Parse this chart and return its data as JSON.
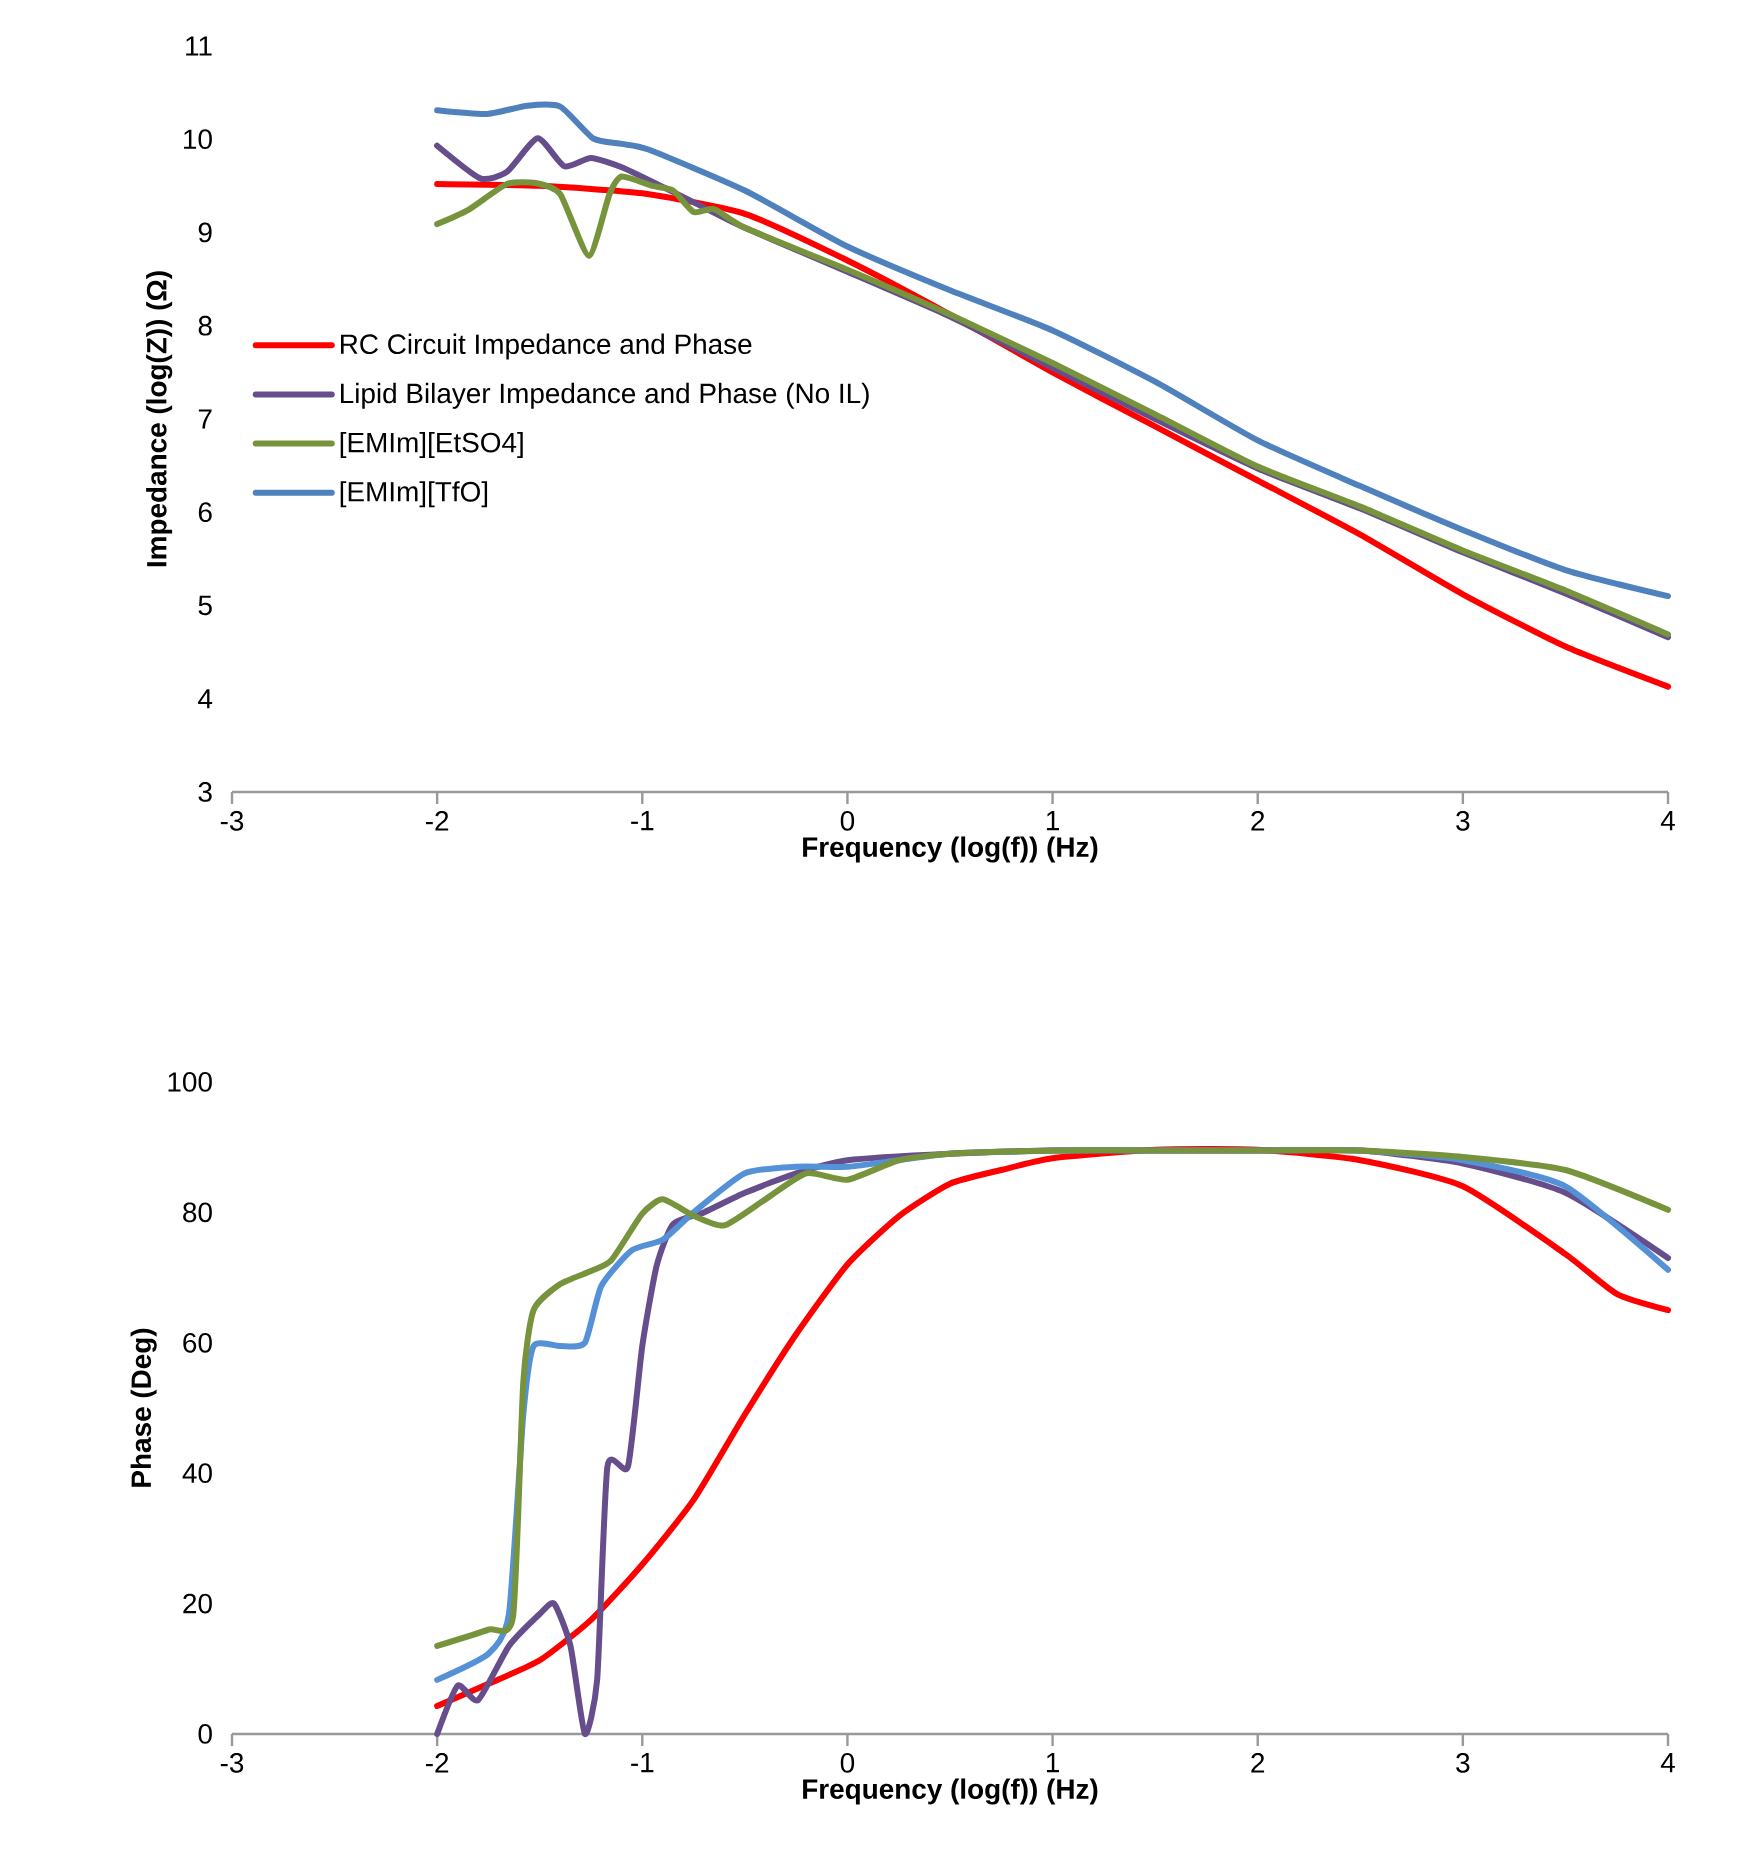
{
  "chart_data": [
    {
      "type": "line",
      "xlabel": "Frequency (log(f)) (Hz)",
      "ylabel": "Impedance (log(Z)) (Ω)",
      "xlim": [
        -3,
        4
      ],
      "ylim": [
        3,
        11
      ],
      "xticks": [
        -3,
        -2,
        -1,
        0,
        1,
        2,
        3,
        4
      ],
      "yticks": [
        3,
        4,
        5,
        6,
        7,
        8,
        9,
        10,
        11
      ],
      "legend": "left",
      "marker": "none",
      "grid": false,
      "series": [
        {
          "name": "RC Circuit Impedance and Phase",
          "color": "#ff0000",
          "x": [
            -2,
            -1.5,
            -1,
            -0.5,
            0,
            0.5,
            1,
            1.5,
            2,
            2.5,
            3,
            3.5,
            4
          ],
          "values": [
            9.52,
            9.5,
            9.42,
            9.2,
            8.7,
            8.12,
            7.5,
            6.92,
            6.34,
            5.76,
            5.12,
            4.56,
            4.13
          ]
        },
        {
          "name": "Lipid Bilayer Impedance and Phase (No IL)",
          "color": "#664d8c",
          "x": [
            -2,
            -1.79,
            -1.66,
            -1.51,
            -1.38,
            -1.25,
            -1.1,
            -0.91,
            -0.71,
            -0.5,
            0,
            0.5,
            1,
            1.5,
            2,
            2.5,
            3,
            3.5,
            4
          ],
          "values": [
            9.93,
            9.58,
            9.65,
            10.01,
            9.71,
            9.8,
            9.7,
            9.5,
            9.28,
            9.05,
            8.58,
            8.1,
            7.55,
            7.0,
            6.47,
            6.04,
            5.57,
            5.13,
            4.66
          ]
        },
        {
          "name": "[EMIm][EtSO4]",
          "color": "#77933c",
          "x": [
            -2,
            -1.85,
            -1.66,
            -1.52,
            -1.4,
            -1.26,
            -1.16,
            -1.1,
            -0.95,
            -0.85,
            -0.75,
            -0.65,
            -0.5,
            0,
            0.5,
            1,
            1.5,
            2,
            2.5,
            3,
            3.5,
            4
          ],
          "values": [
            9.09,
            9.24,
            9.52,
            9.53,
            9.41,
            8.75,
            9.41,
            9.6,
            9.5,
            9.45,
            9.22,
            9.25,
            9.05,
            8.6,
            8.12,
            7.6,
            7.05,
            6.49,
            6.06,
            5.59,
            5.16,
            4.69
          ]
        },
        {
          "name": "[EMIm][TfO]",
          "color": "#4f81bd",
          "x": [
            -2,
            -1.76,
            -1.56,
            -1.4,
            -1.24,
            -1.1,
            -0.97,
            -0.5,
            0,
            0.5,
            1,
            1.5,
            2,
            2.5,
            3,
            3.5,
            4
          ],
          "values": [
            10.31,
            10.27,
            10.36,
            10.35,
            10.01,
            9.95,
            9.89,
            9.45,
            8.85,
            8.38,
            7.95,
            7.4,
            6.77,
            6.28,
            5.81,
            5.38,
            5.1
          ]
        }
      ]
    },
    {
      "type": "line",
      "xlabel": "Frequency (log(f)) (Hz)",
      "ylabel": "Phase (Deg)",
      "xlim": [
        -3,
        4
      ],
      "ylim": [
        0,
        100
      ],
      "xticks": [
        -3,
        -2,
        -1,
        0,
        1,
        2,
        3,
        4
      ],
      "yticks": [
        0,
        20,
        40,
        60,
        80,
        100
      ],
      "legend": false,
      "marker": "none",
      "grid": false,
      "series": [
        {
          "color": "#ff0000",
          "x": [
            -2,
            -1.75,
            -1.5,
            -1.25,
            -1,
            -0.75,
            -0.5,
            -0.25,
            0,
            0.25,
            0.5,
            0.75,
            1,
            1.5,
            2,
            2.5,
            3,
            3.5,
            3.75,
            4
          ],
          "values": [
            4.3,
            7.7,
            11.3,
            17.5,
            26,
            35.9,
            49,
            61.3,
            72,
            79.4,
            84.4,
            86.5,
            88.3,
            89.6,
            89.6,
            88,
            84,
            73.6,
            67.5,
            65
          ]
        },
        {
          "color": "#664d8c",
          "x": [
            -2,
            -1.9,
            -1.8,
            -1.65,
            -1.5,
            -1.43,
            -1.35,
            -1.28,
            -1.22,
            -1.17,
            -1.07,
            -1,
            -0.93,
            -0.85,
            -0.7,
            -0.5,
            -0.25,
            0,
            0.5,
            1,
            1.5,
            2,
            2.5,
            3,
            3.5,
            4
          ],
          "values": [
            0,
            7.4,
            5.2,
            13.5,
            18.4,
            20,
            13.5,
            0,
            8.3,
            41,
            41,
            59.5,
            71.8,
            78.2,
            80,
            83,
            86,
            88,
            89,
            89.5,
            89.5,
            89.5,
            89.5,
            87.5,
            83,
            73
          ]
        },
        {
          "color": "#5591d6",
          "x": [
            -2,
            -1.75,
            -1.65,
            -1.58,
            -1.53,
            -1.4,
            -1.28,
            -1.2,
            -1.05,
            -0.9,
            -0.75,
            -0.5,
            -0.25,
            0,
            0.25,
            0.5,
            1,
            1.5,
            2,
            2.5,
            3,
            3.5,
            4
          ],
          "values": [
            8.3,
            12.3,
            18.4,
            49,
            59.5,
            59.5,
            60,
            68.7,
            74.2,
            75.8,
            80,
            86,
            87,
            87,
            88,
            89,
            89.5,
            89.5,
            89.5,
            89.5,
            88,
            84,
            71.2
          ]
        },
        {
          "color": "#77933c",
          "x": [
            -2,
            -1.75,
            -1.63,
            -1.58,
            -1.53,
            -1.4,
            -1.25,
            -1.15,
            -1,
            -0.9,
            -0.75,
            -0.6,
            -0.4,
            -0.2,
            0,
            0.25,
            0.5,
            1,
            1.5,
            2,
            2.5,
            3,
            3.5,
            4
          ],
          "values": [
            13.5,
            16,
            18,
            54,
            65,
            69,
            71,
            72.7,
            79.8,
            82,
            79.5,
            78,
            82,
            86,
            85,
            88,
            89,
            89.5,
            89.5,
            89.5,
            89.5,
            88.5,
            86.5,
            80.4
          ]
        }
      ]
    }
  ]
}
